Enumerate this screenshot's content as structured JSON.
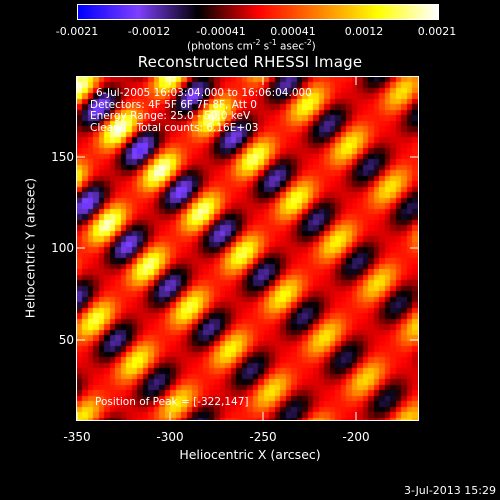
{
  "colorbar": {
    "tick_labels": [
      "-0.0021",
      "-0.0012",
      "-0.00041",
      "0.00041",
      "0.0012",
      "0.0021"
    ],
    "units": {
      "prefix": "(photons cm",
      "exp1": "-2",
      "mid1": " s",
      "exp2": "-1",
      "mid2": " asec",
      "exp3": "-2",
      "suffix": ")"
    },
    "range": [
      -0.0021,
      0.0021
    ]
  },
  "plot": {
    "title": "Reconstructed RHESSI Image",
    "info_lines": [
      "6-Jul-2005 16:03:04.000 to 16:06:04.000",
      "Detectors: 4F 5F 6F 7F 8F, Att 0",
      "Energy Range: 25.0 - 50.0 keV",
      "Clean     Total counts: 6.16E+03"
    ],
    "peak_label": "Position of Peak = [-322,147]",
    "x_axis": {
      "label": "Heliocentric X (arcsec)",
      "ticks": [
        "-350",
        "-300",
        "-250",
        "-200"
      ],
      "range": [
        -350,
        -166
      ]
    },
    "y_axis": {
      "label": "Heliocentric Y (arcsec)",
      "ticks": [
        "50",
        "100",
        "150"
      ],
      "range": [
        2,
        186
      ]
    }
  },
  "colors": {
    "background": "#000000",
    "text": "#ffffff",
    "colormap": [
      "#0000ff",
      "#8040ff",
      "#000000",
      "#ff0000",
      "#ff8000",
      "#ffff00",
      "#ffffff"
    ]
  },
  "footer": {
    "timestamp": "3-Jul-2013 15:29"
  }
}
